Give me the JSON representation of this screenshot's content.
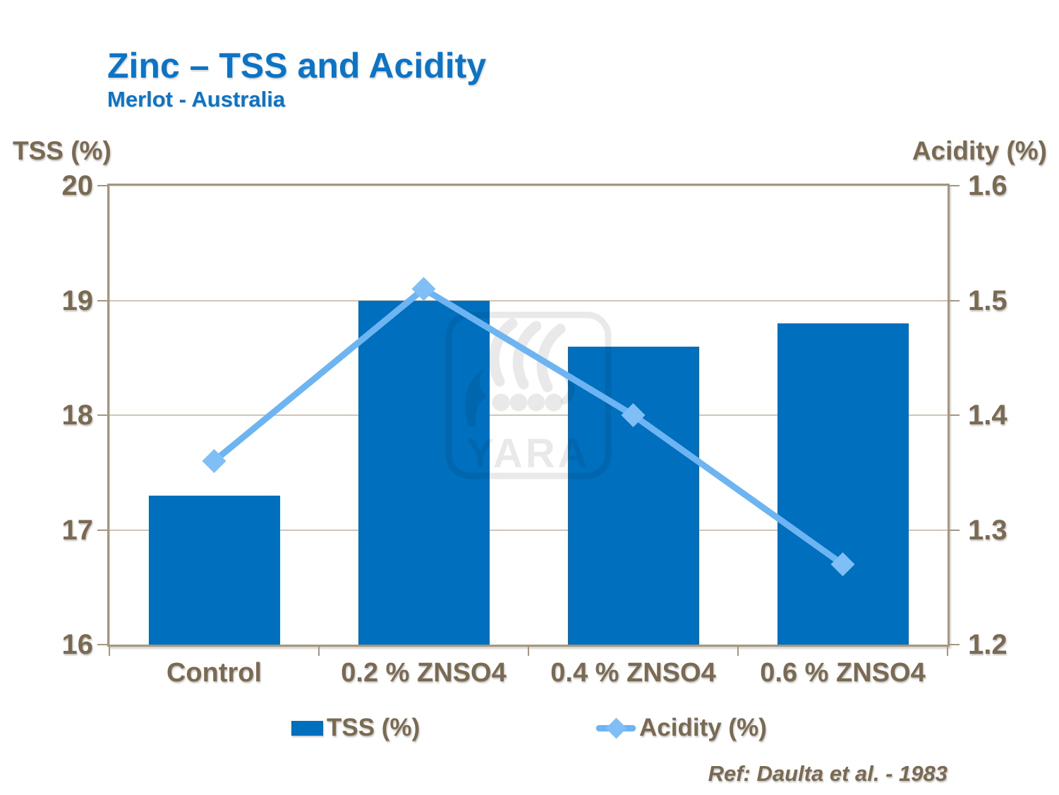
{
  "header": {
    "title": "Zinc – TSS and Acidity",
    "subtitle": "Merlot - Australia"
  },
  "ref_text": "Ref: Daulta et al. - 1983",
  "watermark": {
    "text": "YARA"
  },
  "colors": {
    "title_blue": "#0b74c6",
    "bar_blue": "#0070BE",
    "line_blue": "#6DB5F2",
    "marker_blue": "#7FBFF5",
    "text_brown": "#7a6a52",
    "frame_taupe": "#a49680"
  },
  "chart_data": {
    "type": "bar",
    "subtype": "combo bar + line, dual axis",
    "categories": [
      "Control",
      "0.2 % ZNSO4",
      "0.4 % ZNSO4",
      "0.6 % ZNSO4"
    ],
    "series": [
      {
        "name": "TSS (%)",
        "type": "bar",
        "axis": "left",
        "values": [
          17.3,
          19.0,
          18.6,
          18.8
        ],
        "color": "#0070BE"
      },
      {
        "name": "Acidity (%)",
        "type": "line",
        "axis": "right",
        "values": [
          1.36,
          1.51,
          1.4,
          1.27
        ],
        "color": "#6DB5F2",
        "marker": "diamond",
        "marker_color": "#7FBFF5"
      }
    ],
    "left_axis": {
      "title": "TSS (%)",
      "min": 16,
      "max": 20,
      "tick_labels": [
        "20",
        "19",
        "18",
        "17",
        "16"
      ]
    },
    "right_axis": {
      "title": "Acidity (%)",
      "min": 1.2,
      "max": 1.6,
      "tick_labels": [
        "1.6",
        "1.5",
        "1.4",
        "1.3",
        "1.2"
      ]
    },
    "grid": "horizontal gridlines at each tick",
    "legend_position": "bottom"
  }
}
